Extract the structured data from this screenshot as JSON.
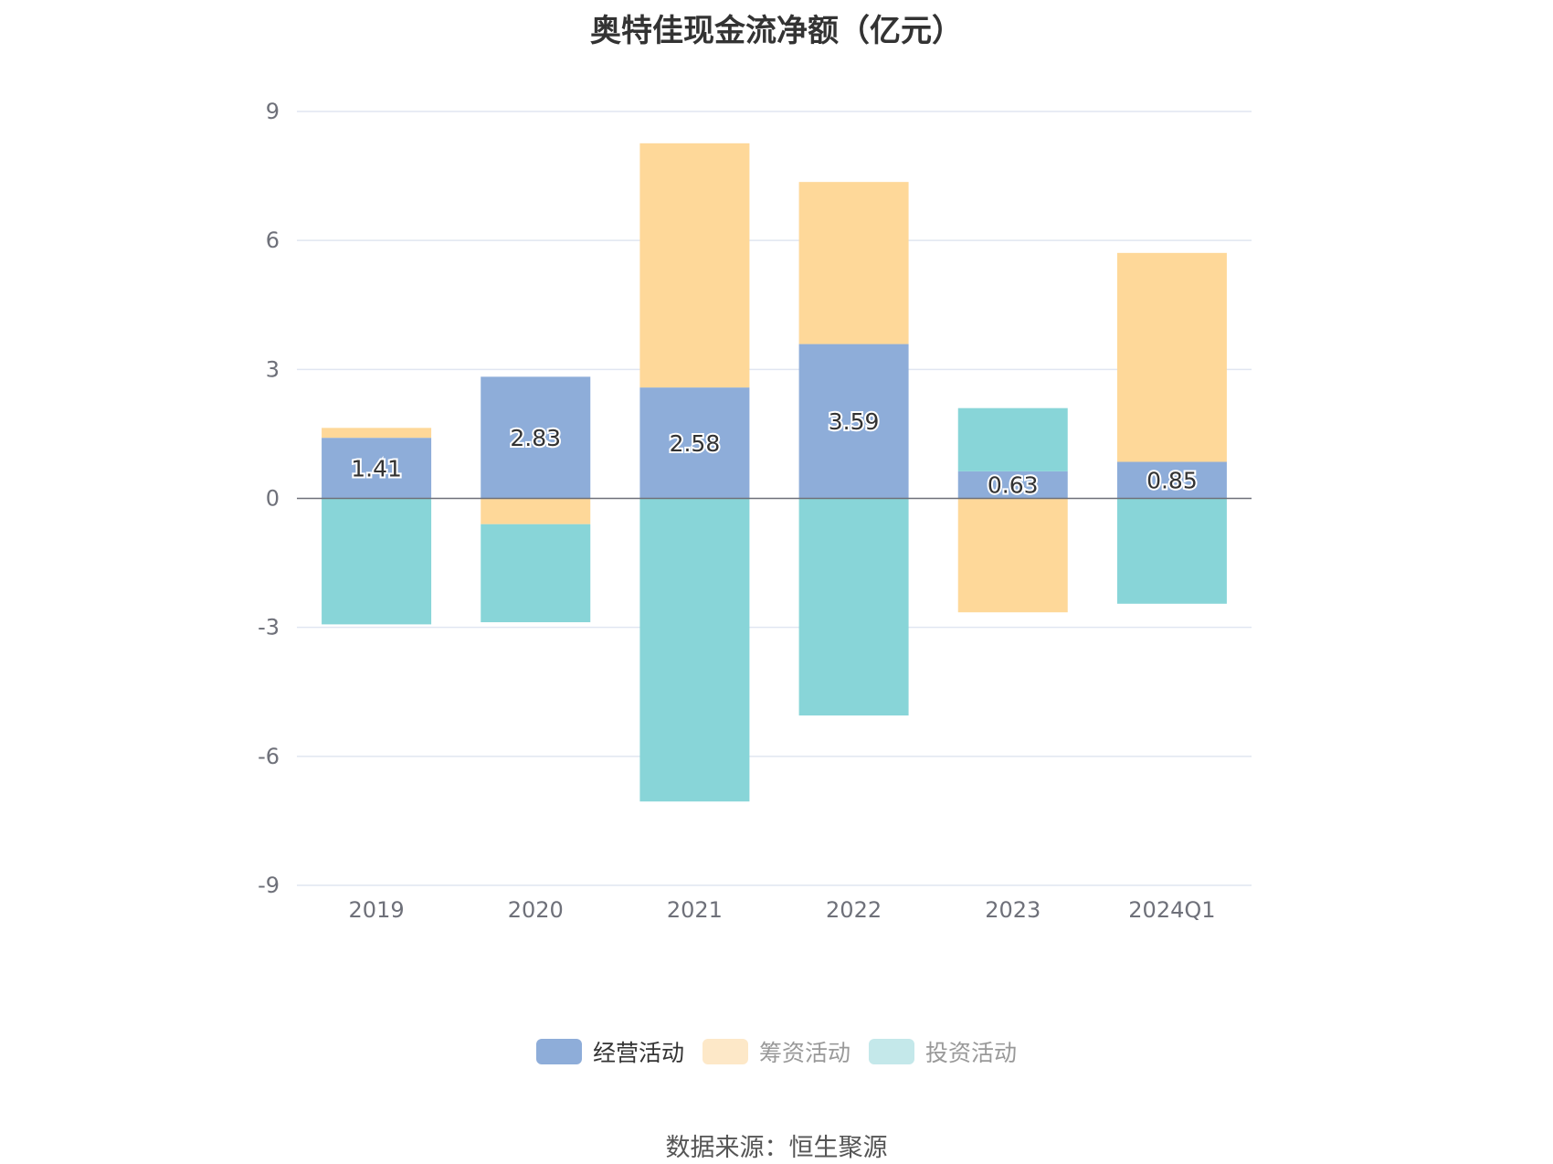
{
  "title": "奥特佳现金流净额（亿元）",
  "source": "数据来源：恒生聚源",
  "colors": {
    "operating": "#8eadd9",
    "financing": "#fed899",
    "investing": "#88d5d8",
    "financing_legend": "#fde8c8",
    "investing_legend": "#c4e8ea",
    "grid": "#e0e6f1",
    "axis": "#6e7079"
  },
  "chart_data": {
    "type": "bar",
    "stacked": true,
    "categories": [
      "2019",
      "2020",
      "2021",
      "2022",
      "2023",
      "2024Q1"
    ],
    "series": [
      {
        "name": "经营活动",
        "values": [
          1.41,
          2.83,
          2.58,
          3.59,
          0.63,
          0.85
        ],
        "labels": [
          "1.41",
          "2.83",
          "2.58",
          "3.59",
          "0.63",
          "0.85"
        ]
      },
      {
        "name": "筹资活动",
        "values": [
          0.23,
          -0.6,
          5.68,
          3.77,
          -2.65,
          4.86
        ]
      },
      {
        "name": "投资活动",
        "values": [
          -2.93,
          -2.28,
          -7.05,
          -5.05,
          1.47,
          -2.45
        ]
      }
    ],
    "yticks": [
      9,
      6,
      3,
      0,
      -3,
      -6,
      -9
    ],
    "ylim": [
      -9,
      9
    ],
    "grid": true,
    "legend_position": "bottom"
  },
  "legend": [
    {
      "label": "经营活动",
      "color_key": "operating",
      "active": true
    },
    {
      "label": "筹资活动",
      "color_key": "financing_legend",
      "active": false
    },
    {
      "label": "投资活动",
      "color_key": "investing_legend",
      "active": false
    }
  ]
}
